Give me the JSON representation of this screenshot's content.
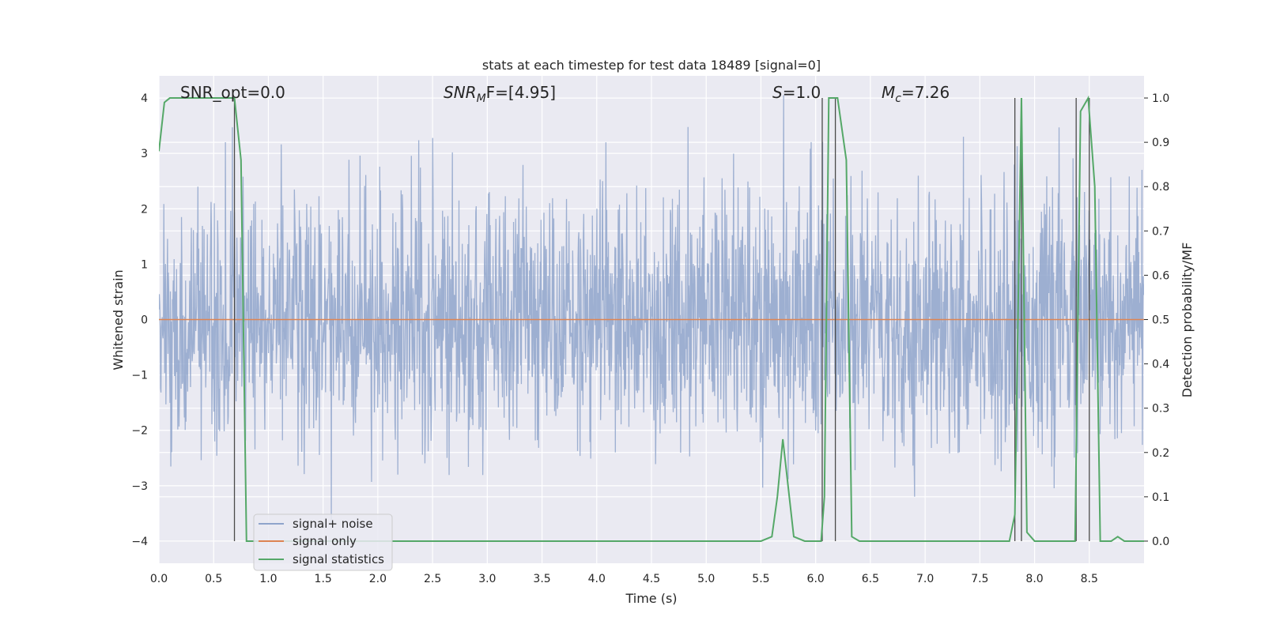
{
  "chart_data": {
    "type": "line",
    "title": "stats at each timestep for test data 18489 [signal=0]",
    "xlabel": "Time (s)",
    "ylabel": "Whitened strain",
    "y2label": "Detection probability/MF",
    "xlim": [
      0.0,
      9.0
    ],
    "ylim": [
      -4.4,
      4.4
    ],
    "y2lim": [
      -0.05,
      1.05
    ],
    "x_ticks": [
      "0.0",
      "0.5",
      "1.0",
      "1.5",
      "2.0",
      "2.5",
      "3.0",
      "3.5",
      "4.0",
      "4.5",
      "5.0",
      "5.5",
      "6.0",
      "6.5",
      "7.0",
      "7.5",
      "8.0",
      "8.5"
    ],
    "y_ticks": [
      "4",
      "3",
      "2",
      "1",
      "0",
      "−1",
      "−2",
      "−3",
      "−4"
    ],
    "y2_ticks": [
      "1.0",
      "0.9",
      "0.8",
      "0.7",
      "0.6",
      "0.5",
      "0.4",
      "0.3",
      "0.2",
      "0.1",
      "0.0"
    ],
    "grid": true,
    "legend_position": "lower-left",
    "annotations": {
      "snr_opt": "SNR_opt=0.0",
      "snr_mf_symbol": "SNR",
      "snr_mf_sub": "M",
      "snr_mf_rest": "F=[4.95]",
      "s_symbol": "S",
      "s_rest": "=1.0",
      "mc_symbol": "M",
      "mc_sub": "c",
      "mc_rest": "=7.26"
    },
    "series": [
      {
        "name": "signal+ noise",
        "color": "#8fa4cb",
        "description_values": "whitened noise, about ±1.6 typical amplitude, peaks near ±4"
      },
      {
        "name": "signal only",
        "color": "#dd8452",
        "values_constant": 0.0
      },
      {
        "name": "signal statistics",
        "color": "#55a868",
        "x": [
          0.0,
          0.05,
          0.1,
          0.2,
          0.3,
          0.4,
          0.5,
          0.6,
          0.66,
          0.69,
          0.75,
          0.8,
          0.9,
          1.0,
          2.0,
          3.0,
          4.0,
          5.0,
          5.5,
          5.6,
          5.65,
          5.7,
          5.75,
          5.8,
          5.9,
          6.0,
          6.05,
          6.08,
          6.12,
          6.2,
          6.28,
          6.33,
          6.4,
          6.5,
          7.0,
          7.5,
          7.77,
          7.82,
          7.88,
          7.93,
          8.0,
          8.2,
          8.37,
          8.42,
          8.49,
          8.55,
          8.6,
          8.65,
          8.7,
          8.76,
          8.82,
          8.88,
          9.0
        ],
        "y": [
          0.88,
          0.99,
          1.0,
          1.0,
          1.0,
          1.0,
          1.0,
          1.0,
          1.0,
          1.0,
          0.86,
          0.0,
          0.0,
          0.0,
          0.0,
          0.0,
          0.0,
          0.0,
          0.0,
          0.01,
          0.1,
          0.23,
          0.12,
          0.01,
          0.0,
          0.0,
          0.0,
          0.1,
          1.0,
          1.0,
          0.86,
          0.01,
          0.0,
          0.0,
          0.0,
          0.0,
          0.0,
          0.06,
          1.0,
          0.02,
          0.0,
          0.0,
          0.0,
          0.97,
          1.0,
          0.8,
          0.0,
          0.0,
          0.0,
          0.01,
          0.0,
          0.0,
          0.0
        ]
      }
    ],
    "vertical_markers_s": [
      0.69,
      6.06,
      6.18,
      7.82,
      7.88,
      8.38,
      8.5
    ]
  }
}
